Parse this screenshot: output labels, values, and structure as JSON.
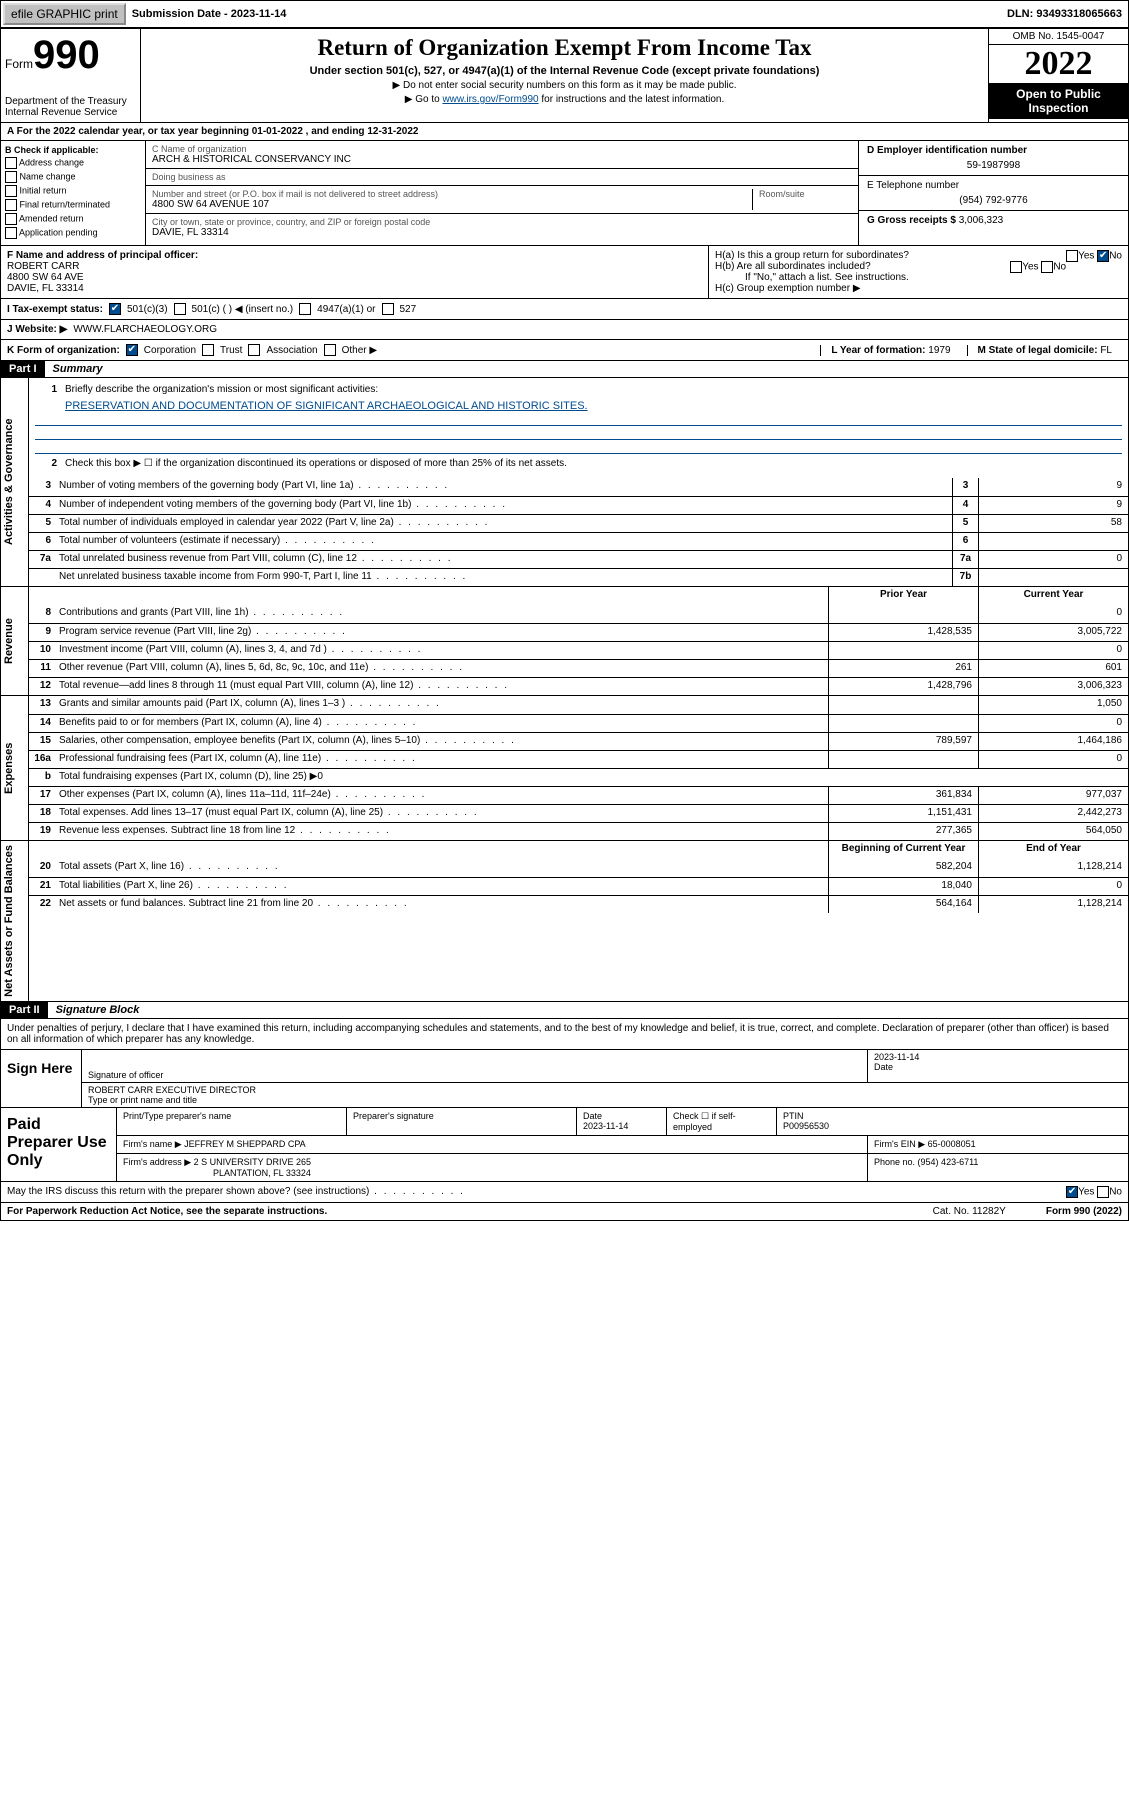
{
  "topbar": {
    "efile": "efile GRAPHIC print",
    "subdate_label": "Submission Date - ",
    "subdate": "2023-11-14",
    "dln_label": "DLN: ",
    "dln": "93493318065663"
  },
  "header": {
    "form_word": "Form",
    "form_num": "990",
    "dept": "Department of the Treasury",
    "irs": "Internal Revenue Service",
    "title": "Return of Organization Exempt From Income Tax",
    "sub": "Under section 501(c), 527, or 4947(a)(1) of the Internal Revenue Code (except private foundations)",
    "note1": "▶ Do not enter social security numbers on this form as it may be made public.",
    "note2_pre": "▶ Go to ",
    "note2_link": "www.irs.gov/Form990",
    "note2_post": " for instructions and the latest information.",
    "omb": "OMB No. 1545-0047",
    "year": "2022",
    "inspection": "Open to Public Inspection"
  },
  "row_a": "A For the 2022 calendar year, or tax year beginning 01-01-2022   , and ending 12-31-2022",
  "col_b": {
    "title": "B Check if applicable:",
    "items": [
      "Address change",
      "Name change",
      "Initial return",
      "Final return/terminated",
      "Amended return",
      "Application pending"
    ]
  },
  "col_c": {
    "name_label": "C Name of organization",
    "name": "ARCH & HISTORICAL CONSERVANCY INC",
    "dba_label": "Doing business as",
    "dba": "",
    "addr_label": "Number and street (or P.O. box if mail is not delivered to street address)",
    "room_label": "Room/suite",
    "addr": "4800 SW 64 AVENUE 107",
    "city_label": "City or town, state or province, country, and ZIP or foreign postal code",
    "city": "DAVIE, FL  33314"
  },
  "col_d": {
    "label": "D Employer identification number",
    "val": "59-1987998"
  },
  "col_e": {
    "label": "E Telephone number",
    "val": "(954) 792-9776"
  },
  "col_g": {
    "label": "G Gross receipts $ ",
    "val": "3,006,323"
  },
  "row_f": {
    "label": "F Name and address of principal officer:",
    "name": "ROBERT CARR",
    "addr1": "4800 SW 64 AVE",
    "addr2": "DAVIE, FL  33314"
  },
  "row_h": {
    "ha": "H(a)  Is this a group return for subordinates?",
    "ha_no": "No",
    "hb": "H(b)  Are all subordinates included?",
    "hb_note": "If \"No,\" attach a list. See instructions.",
    "hc": "H(c)  Group exemption number ▶"
  },
  "row_i": {
    "label": "I   Tax-exempt status:",
    "opt501c3": "501(c)(3)",
    "opt501c": "501(c) (  ) ◀ (insert no.)",
    "opt4947": "4947(a)(1) or",
    "opt527": "527"
  },
  "row_j": {
    "label": "J   Website: ▶",
    "val": "WWW.FLARCHAEOLOGY.ORG"
  },
  "row_k": {
    "label": "K Form of organization:",
    "corp": "Corporation",
    "trust": "Trust",
    "assoc": "Association",
    "other": "Other ▶"
  },
  "row_l": {
    "label": "L Year of formation: ",
    "val": "1979"
  },
  "row_m": {
    "label": "M State of legal domicile: ",
    "val": "FL"
  },
  "parts": {
    "p1": "Part I",
    "p1_title": "Summary",
    "p2": "Part II",
    "p2_title": "Signature Block"
  },
  "vtabs": {
    "gov": "Activities & Governance",
    "rev": "Revenue",
    "exp": "Expenses",
    "net": "Net Assets or Fund Balances"
  },
  "summary": {
    "l1_label": "Briefly describe the organization's mission or most significant activities:",
    "l1_mission": "PRESERVATION AND DOCUMENTATION OF SIGNIFICANT ARCHAEOLOGICAL AND HISTORIC SITES.",
    "l2": "Check this box ▶ ☐  if the organization discontinued its operations or disposed of more than 25% of its net assets.",
    "rows_gov": [
      {
        "n": "3",
        "t": "Number of voting members of the governing body (Part VI, line 1a)",
        "b": "3",
        "v": "9"
      },
      {
        "n": "4",
        "t": "Number of independent voting members of the governing body (Part VI, line 1b)",
        "b": "4",
        "v": "9"
      },
      {
        "n": "5",
        "t": "Total number of individuals employed in calendar year 2022 (Part V, line 2a)",
        "b": "5",
        "v": "58"
      },
      {
        "n": "6",
        "t": "Total number of volunteers (estimate if necessary)",
        "b": "6",
        "v": ""
      },
      {
        "n": "7a",
        "t": "Total unrelated business revenue from Part VIII, column (C), line 12",
        "b": "7a",
        "v": "0"
      },
      {
        "n": "",
        "t": "Net unrelated business taxable income from Form 990-T, Part I, line 11",
        "b": "7b",
        "v": ""
      }
    ],
    "hdr_prior": "Prior Year",
    "hdr_curr": "Current Year",
    "rows_rev": [
      {
        "n": "8",
        "t": "Contributions and grants (Part VIII, line 1h)",
        "p": "",
        "c": "0"
      },
      {
        "n": "9",
        "t": "Program service revenue (Part VIII, line 2g)",
        "p": "1,428,535",
        "c": "3,005,722"
      },
      {
        "n": "10",
        "t": "Investment income (Part VIII, column (A), lines 3, 4, and 7d )",
        "p": "",
        "c": "0"
      },
      {
        "n": "11",
        "t": "Other revenue (Part VIII, column (A), lines 5, 6d, 8c, 9c, 10c, and 11e)",
        "p": "261",
        "c": "601"
      },
      {
        "n": "12",
        "t": "Total revenue—add lines 8 through 11 (must equal Part VIII, column (A), line 12)",
        "p": "1,428,796",
        "c": "3,006,323"
      }
    ],
    "rows_exp": [
      {
        "n": "13",
        "t": "Grants and similar amounts paid (Part IX, column (A), lines 1–3 )",
        "p": "",
        "c": "1,050"
      },
      {
        "n": "14",
        "t": "Benefits paid to or for members (Part IX, column (A), line 4)",
        "p": "",
        "c": "0"
      },
      {
        "n": "15",
        "t": "Salaries, other compensation, employee benefits (Part IX, column (A), lines 5–10)",
        "p": "789,597",
        "c": "1,464,186"
      },
      {
        "n": "16a",
        "t": "Professional fundraising fees (Part IX, column (A), line 11e)",
        "p": "",
        "c": "0"
      },
      {
        "n": "b",
        "t": "Total fundraising expenses (Part IX, column (D), line 25) ▶0",
        "p": null,
        "c": null
      },
      {
        "n": "17",
        "t": "Other expenses (Part IX, column (A), lines 11a–11d, 11f–24e)",
        "p": "361,834",
        "c": "977,037"
      },
      {
        "n": "18",
        "t": "Total expenses. Add lines 13–17 (must equal Part IX, column (A), line 25)",
        "p": "1,151,431",
        "c": "2,442,273"
      },
      {
        "n": "19",
        "t": "Revenue less expenses. Subtract line 18 from line 12",
        "p": "277,365",
        "c": "564,050"
      }
    ],
    "hdr_begin": "Beginning of Current Year",
    "hdr_end": "End of Year",
    "rows_net": [
      {
        "n": "20",
        "t": "Total assets (Part X, line 16)",
        "p": "582,204",
        "c": "1,128,214"
      },
      {
        "n": "21",
        "t": "Total liabilities (Part X, line 26)",
        "p": "18,040",
        "c": "0"
      },
      {
        "n": "22",
        "t": "Net assets or fund balances. Subtract line 21 from line 20",
        "p": "564,164",
        "c": "1,128,214"
      }
    ]
  },
  "sig": {
    "penalty": "Under penalties of perjury, I declare that I have examined this return, including accompanying schedules and statements, and to the best of my knowledge and belief, it is true, correct, and complete. Declaration of preparer (other than officer) is based on all information of which preparer has any knowledge.",
    "sign_here": "Sign Here",
    "sig_officer": "Signature of officer",
    "date_label": "Date",
    "date": "2023-11-14",
    "name_title": "ROBERT CARR  EXECUTIVE DIRECTOR",
    "name_title_label": "Type or print name and title"
  },
  "prep": {
    "title": "Paid Preparer Use Only",
    "r1": {
      "c1": "Print/Type preparer's name",
      "c2": "Preparer's signature",
      "c3": "Date",
      "c3v": "2023-11-14",
      "c4": "Check ☐ if self-employed",
      "c5": "PTIN",
      "c5v": "P00956530"
    },
    "r2": {
      "label": "Firm's name    ▶ ",
      "val": "JEFFREY M SHEPPARD CPA",
      "ein_label": "Firm's EIN ▶ ",
      "ein": "65-0008051"
    },
    "r3": {
      "label": "Firm's address ▶ ",
      "val1": "2 S UNIVERSITY DRIVE 265",
      "val2": "PLANTATION, FL  33324",
      "ph_label": "Phone no. ",
      "ph": "(954) 423-6711"
    }
  },
  "footer": {
    "discuss": "May the IRS discuss this return with the preparer shown above? (see instructions)",
    "yes": "Yes",
    "no": "No",
    "paperwork": "For Paperwork Reduction Act Notice, see the separate instructions.",
    "cat": "Cat. No. 11282Y",
    "form": "Form 990 (2022)"
  }
}
